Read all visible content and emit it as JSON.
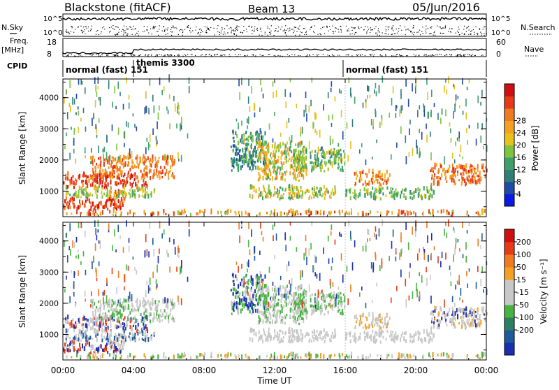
{
  "header": {
    "radar": "Blackstone (fitACF)",
    "beam": "Beam 13",
    "date": "05/Jun/2016"
  },
  "side_labels": {
    "nsky": "N.Sky",
    "freq_line1": "Freq.",
    "freq_line2": "[MHz]",
    "cpid": "CPID",
    "nsearch": "N.Search",
    "nave": "Nave"
  },
  "chart_data": [
    {
      "type": "line",
      "name": "noise-panel",
      "ylim_left_labels": [
        "10^5",
        "10^0"
      ],
      "ylim_right_labels": [
        "10^5",
        "10^0"
      ],
      "x_range_hours": [
        0,
        24
      ]
    },
    {
      "type": "line",
      "name": "freq-panel",
      "left_ticks": [
        "18",
        "8"
      ],
      "right_ticks": [
        "60",
        "0"
      ],
      "x_range_hours": [
        0,
        24
      ]
    },
    {
      "type": "table",
      "name": "cpid-panel",
      "segments": [
        {
          "start": 0,
          "label": "normal (fast) 151"
        },
        {
          "start": 4,
          "label": "themis 3300"
        },
        {
          "start": 16,
          "label": "normal (fast) 151"
        }
      ]
    },
    {
      "type": "heatmap",
      "name": "power",
      "ylabel": "Slant Range [km]",
      "yticks": [
        1000,
        2000,
        3000,
        4000
      ],
      "ylim": [
        180,
        4600
      ],
      "colorbar_label": "Power [dB]",
      "colorbar_ticks": [
        4,
        8,
        12,
        16,
        20,
        24,
        28
      ],
      "colors": [
        "#0a19e6",
        "#2049a8",
        "#2f7f78",
        "#3ea16a",
        "#7fc43f",
        "#e8c020",
        "#f5a020",
        "#f07a20",
        "#e83a18",
        "#d01010"
      ]
    },
    {
      "type": "heatmap",
      "name": "velocity",
      "ylabel": "Slant Range [km]",
      "yticks": [
        1000,
        2000,
        3000,
        4000
      ],
      "ylim": [
        180,
        4600
      ],
      "colorbar_label": "Velocity [m s⁻¹]",
      "colorbar_ticks": [
        200,
        100,
        50,
        15,
        -15,
        -50,
        -100,
        -200
      ],
      "colors": [
        "#1a2fb0",
        "#1f5a9a",
        "#2a8060",
        "#49b341",
        "#c8c8c8",
        "#c8c8c8",
        "#f5a020",
        "#f07a20",
        "#e83a18",
        "#d01010"
      ]
    }
  ],
  "x_axis": {
    "label": "Time UT",
    "ticks": [
      "00:00",
      "04:00",
      "08:00",
      "12:00",
      "16:00",
      "20:00",
      "00:00"
    ]
  }
}
